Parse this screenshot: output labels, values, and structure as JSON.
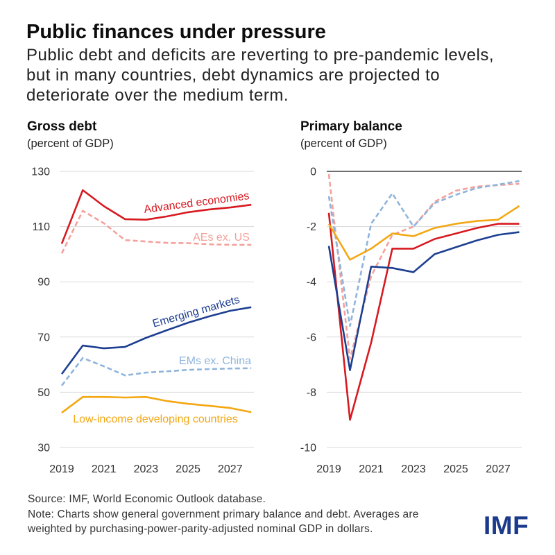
{
  "title": "Public finances under pressure",
  "subtitle_lines": [
    "Public debt and deficits are reverting to pre-pandemic levels,",
    "but in many countries, debt dynamics are projected to",
    "deteriorate over the medium term."
  ],
  "chart_data": [
    {
      "type": "line",
      "title": "Gross debt",
      "ylabel": "(percent of GDP)",
      "x": [
        2019,
        2020,
        2021,
        2022,
        2023,
        2024,
        2025,
        2026,
        2027,
        2028
      ],
      "xticks": [
        2019,
        2021,
        2023,
        2025,
        2027
      ],
      "ylim": [
        30,
        130
      ],
      "yticks": [
        30,
        50,
        70,
        90,
        110,
        130
      ],
      "grid": true,
      "series": [
        {
          "name": "Advanced economies",
          "color": "#d71920",
          "dashed": false,
          "values": [
            103.8,
            123.2,
            117.4,
            112.7,
            112.5,
            113.7,
            115.2,
            116.2,
            116.9,
            117.9
          ]
        },
        {
          "name": "AEs ex. US",
          "color": "#f4a19b",
          "dashed": true,
          "values": [
            100.3,
            115.7,
            111.2,
            105.1,
            104.6,
            104.1,
            104.0,
            103.6,
            103.4,
            103.4
          ]
        },
        {
          "name": "Emerging markets",
          "color": "#1d3f91",
          "dashed": false,
          "values": [
            56.6,
            66.9,
            65.9,
            66.4,
            69.7,
            72.5,
            75.2,
            77.5,
            79.5,
            80.8
          ]
        },
        {
          "name": "EMs ex. China",
          "color": "#8fb4dc",
          "dashed": true,
          "values": [
            52.4,
            62.4,
            59.4,
            56.1,
            57.1,
            57.6,
            58.1,
            58.4,
            58.6,
            58.7
          ]
        },
        {
          "name": "Low-income developing countries",
          "color": "#f3a712",
          "dashed": false,
          "values": [
            42.6,
            48.3,
            48.3,
            48.1,
            48.3,
            46.8,
            45.8,
            45.1,
            44.3,
            42.8
          ]
        }
      ]
    },
    {
      "type": "line",
      "title": "Primary balance",
      "ylabel": "(percent of GDP)",
      "x": [
        2019,
        2020,
        2021,
        2022,
        2023,
        2024,
        2025,
        2026,
        2027,
        2028
      ],
      "xticks": [
        2019,
        2021,
        2023,
        2025,
        2027
      ],
      "ylim": [
        -10,
        0
      ],
      "yticks": [
        0,
        -2,
        -4,
        -6,
        -8,
        -10
      ],
      "grid": true,
      "series": [
        {
          "color": "#d71920",
          "dashed": false,
          "values": [
            -1.5,
            -9.0,
            -6.2,
            -2.8,
            -2.8,
            -2.45,
            -2.25,
            -2.05,
            -1.9,
            -1.9
          ]
        },
        {
          "color": "#f4a19b",
          "dashed": true,
          "values": [
            -0.1,
            -6.8,
            -3.8,
            -2.3,
            -2.0,
            -1.1,
            -0.7,
            -0.55,
            -0.5,
            -0.45
          ]
        },
        {
          "color": "#1d3f91",
          "dashed": false,
          "values": [
            -2.7,
            -7.2,
            -3.45,
            -3.5,
            -3.65,
            -3.0,
            -2.75,
            -2.5,
            -2.3,
            -2.2
          ]
        },
        {
          "color": "#8fb4dc",
          "dashed": true,
          "values": [
            -0.9,
            -5.6,
            -1.9,
            -0.8,
            -2.0,
            -1.15,
            -0.85,
            -0.6,
            -0.48,
            -0.35
          ]
        },
        {
          "color": "#f3a712",
          "dashed": false,
          "values": [
            -1.9,
            -3.2,
            -2.8,
            -2.25,
            -2.35,
            -2.05,
            -1.9,
            -1.8,
            -1.75,
            -1.25
          ]
        }
      ]
    }
  ],
  "footer": {
    "source": "Source: IMF, World Economic Outlook database.",
    "note_lines": [
      "Note: Charts show general government primary balance and debt. Averages are",
      "weighted by purchasing-power-parity-adjusted nominal GDP in dollars."
    ]
  },
  "logo": "IMF"
}
